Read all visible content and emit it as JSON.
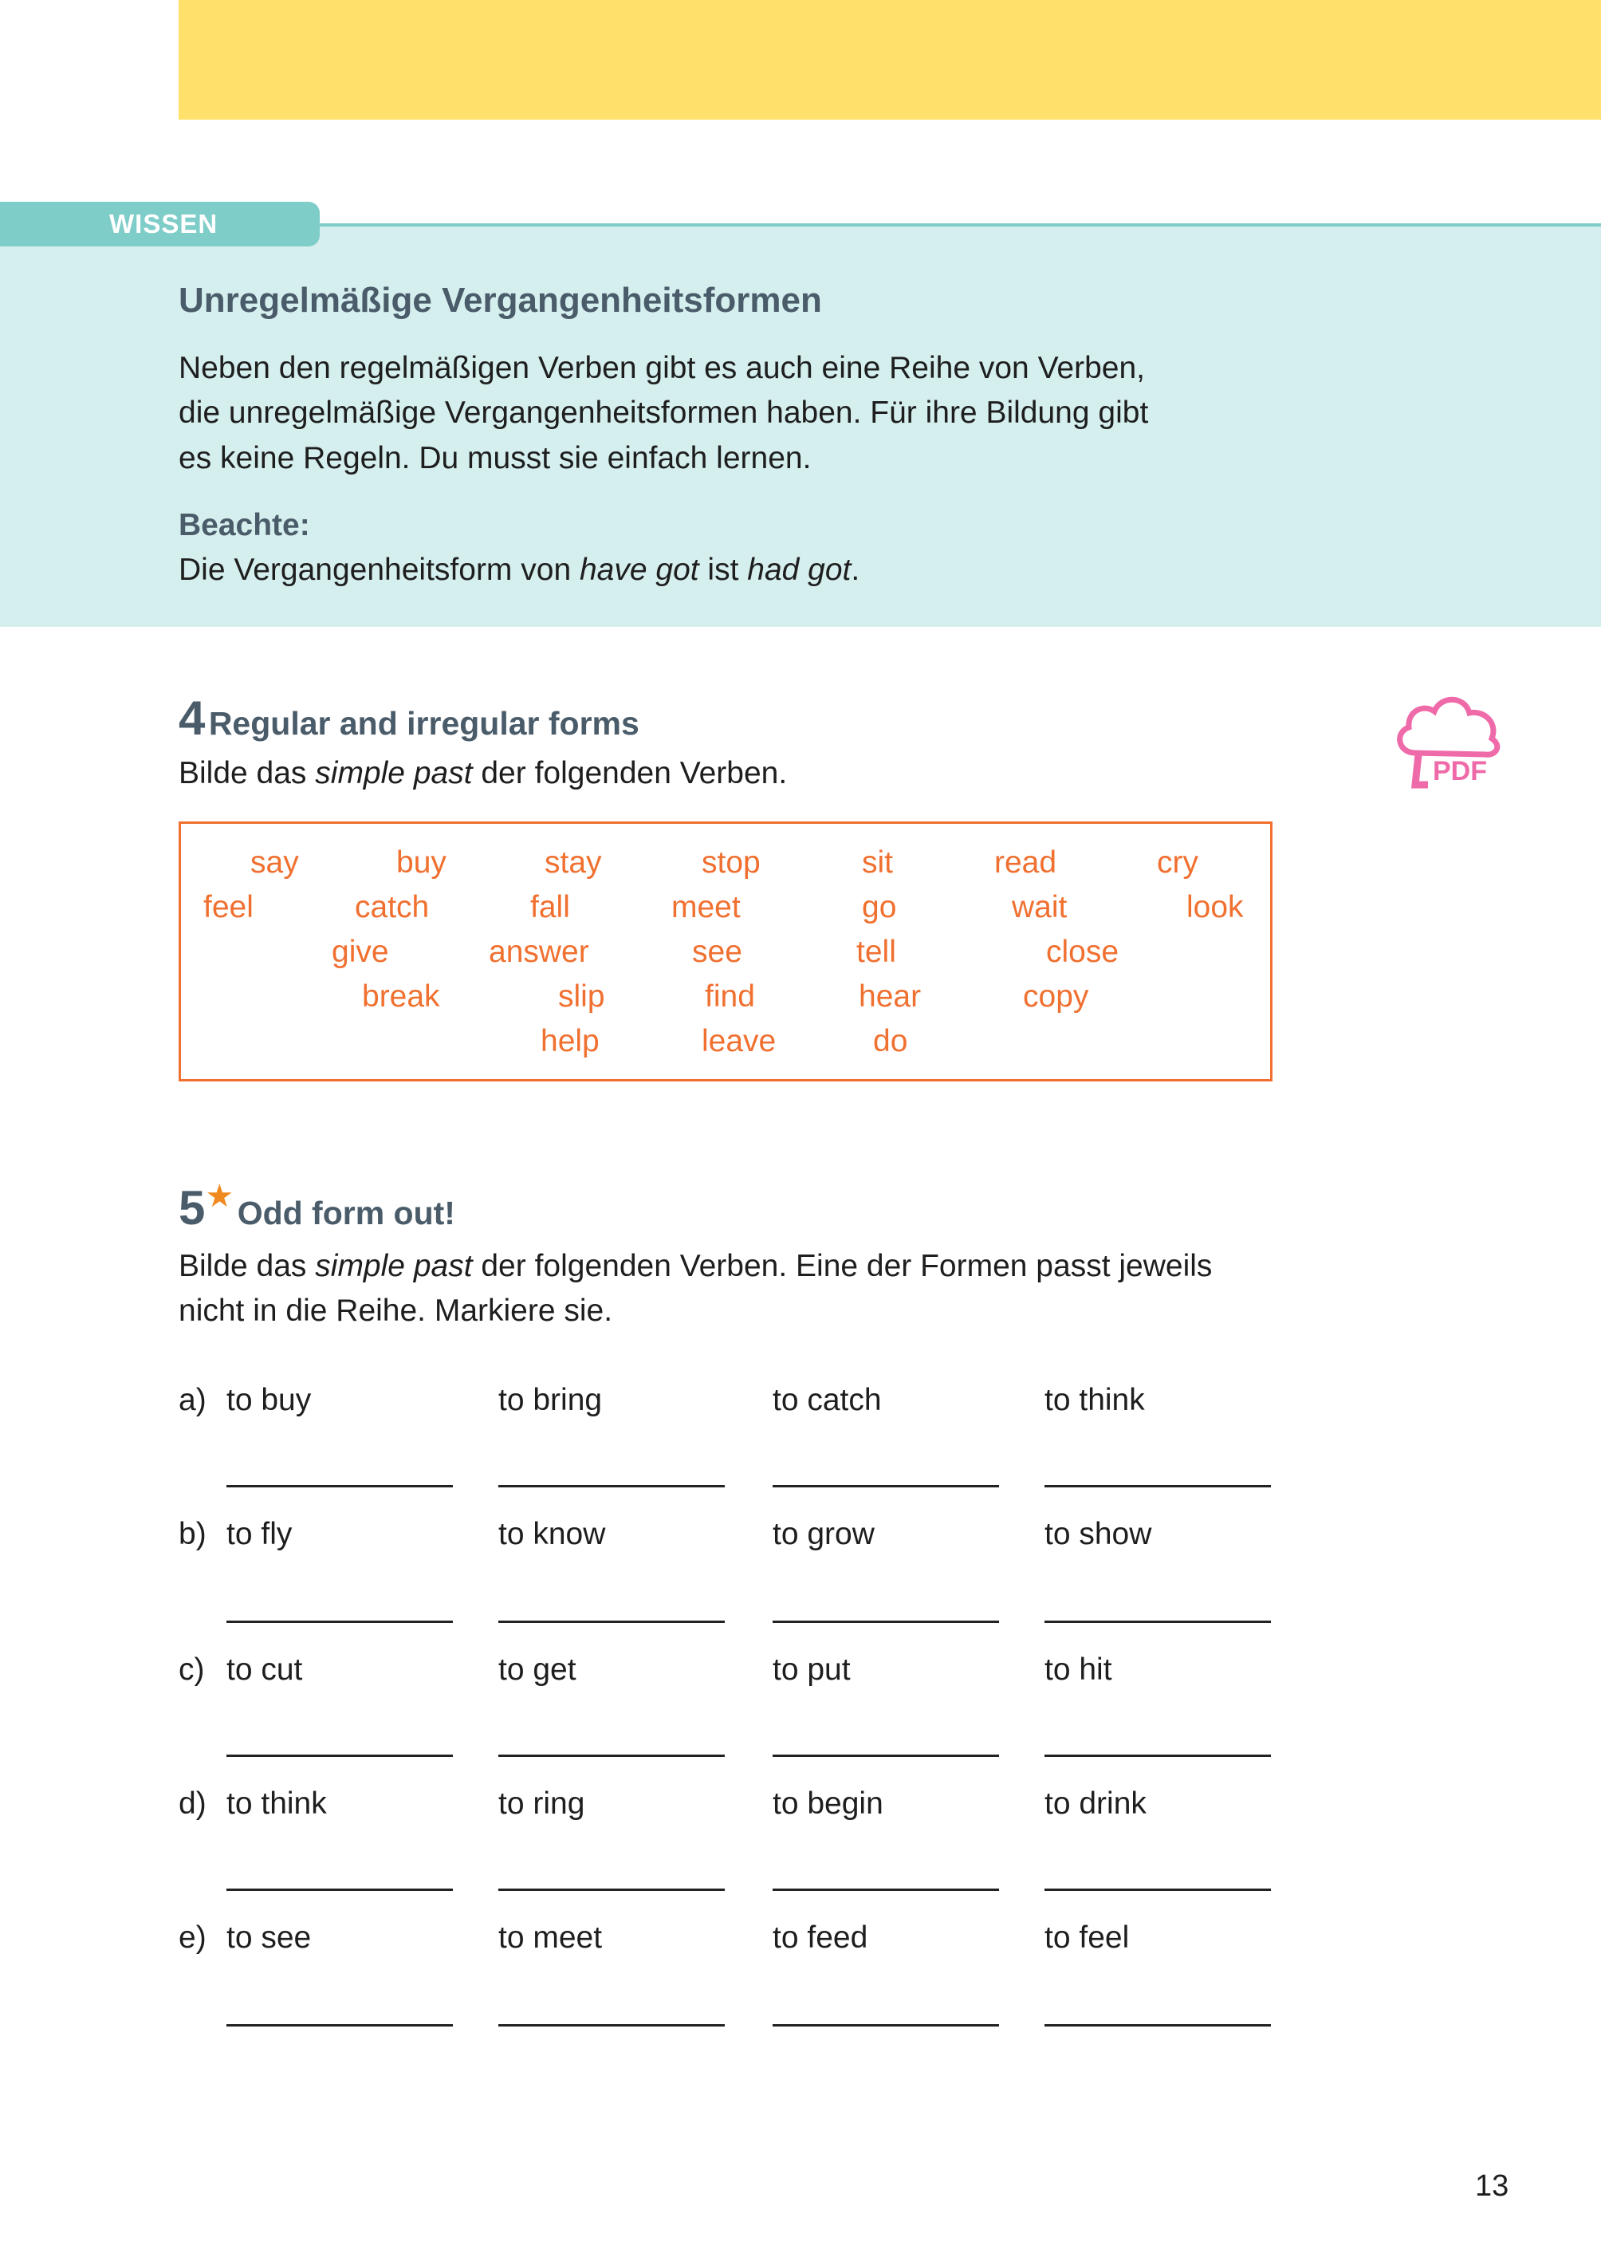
{
  "wissen": {
    "tab_label": "WISSEN",
    "title": "Unregelmäßige Vergangenheitsformen",
    "paragraph": [
      "Neben den regelmäßigen Verben gibt es auch eine Reihe von Verben,",
      "die unregelmäßige Vergangenheitsformen haben. Für ihre Bildung gibt",
      "es keine Regeln. Du musst sie einfach lernen."
    ],
    "note_label": "Beachte:",
    "note_pre": "Die Vergangenheitsform von ",
    "note_em1": "have got",
    "note_mid": " ist ",
    "note_em2": "had got",
    "note_post": "."
  },
  "exercise4": {
    "number": "4",
    "title": "Regular and irregular forms",
    "instr_pre": "Bilde das ",
    "instr_em": "simple past",
    "instr_post": " der folgenden Verben.",
    "verbs": [
      "say",
      "buy",
      "stay",
      "stop",
      "sit",
      "read",
      "cry",
      "feel",
      "catch",
      "fall",
      "meet",
      "go",
      "wait",
      "look",
      "give",
      "answer",
      "see",
      "tell",
      "close",
      "break",
      "slip",
      "find",
      "hear",
      "copy",
      "help",
      "leave",
      "do"
    ],
    "pdf_label": "PDF"
  },
  "exercise5": {
    "number": "5",
    "star": "★",
    "title": "Odd form out!",
    "instr_line1_pre": "Bilde das ",
    "instr_em": "simple past",
    "instr_line1_post": " der folgenden Verben. Eine der Formen passt jeweils",
    "instr_line2": "nicht in die Reihe. Markiere sie.",
    "rows": [
      {
        "label": "a)",
        "items": [
          "to buy",
          "to bring",
          "to catch",
          "to think"
        ]
      },
      {
        "label": "b)",
        "items": [
          "to fly",
          "to know",
          "to grow",
          "to show"
        ]
      },
      {
        "label": "c)",
        "items": [
          "to cut",
          "to get",
          "to put",
          "to hit"
        ]
      },
      {
        "label": "d)",
        "items": [
          "to think",
          "to ring",
          "to begin",
          "to drink"
        ]
      },
      {
        "label": "e)",
        "items": [
          "to see",
          "to meet",
          "to feed",
          "to feel"
        ]
      }
    ]
  },
  "colors": {
    "accent_teal": "#7ecdc9",
    "box_bg": "#d5eeee",
    "yellow": "#ffe06b",
    "orange": "#f07030",
    "pdf_pink": "#ef6aa8",
    "heading": "#4a5c6a"
  },
  "page_number": "13"
}
